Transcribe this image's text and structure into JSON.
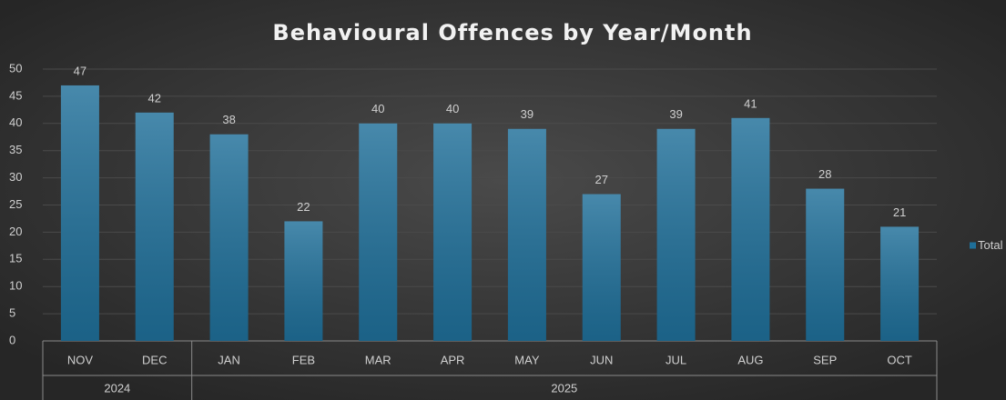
{
  "chart_data": {
    "type": "bar",
    "title": "Behavioural Offences by Year/Month",
    "categories": [
      "NOV",
      "DEC",
      "JAN",
      "FEB",
      "MAR",
      "APR",
      "MAY",
      "JUN",
      "JUL",
      "AUG",
      "SEP",
      "OCT"
    ],
    "category_groups": [
      "2024",
      "2024",
      "2025",
      "2025",
      "2025",
      "2025",
      "2025",
      "2025",
      "2025",
      "2025",
      "2025",
      "2025"
    ],
    "series": [
      {
        "name": "Total",
        "color": "#1f6f99",
        "values": [
          47,
          42,
          38,
          22,
          40,
          40,
          39,
          27,
          39,
          41,
          28,
          21
        ]
      }
    ],
    "ylim": [
      0,
      50
    ],
    "yticks": [
      0,
      5,
      10,
      15,
      20,
      25,
      30,
      35,
      40,
      45,
      50
    ],
    "grid": true,
    "legend": "right"
  }
}
